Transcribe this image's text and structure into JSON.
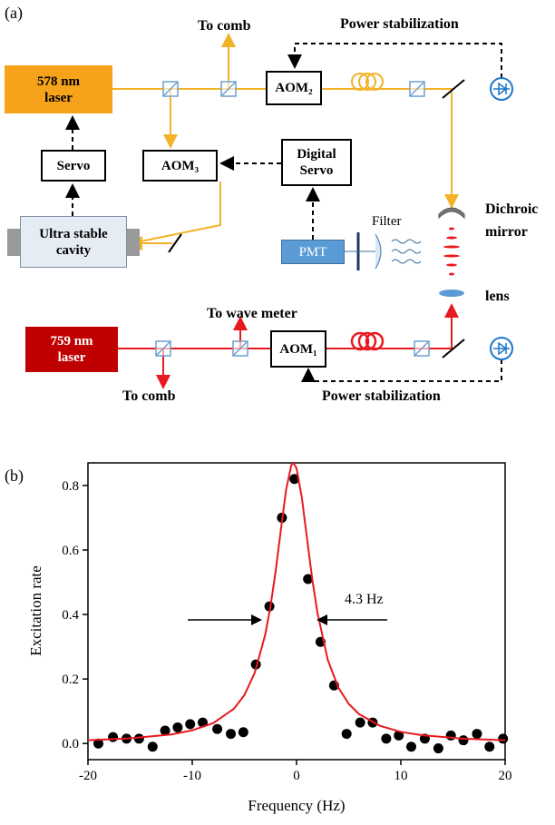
{
  "panel_labels": [
    "(a)",
    "(b)"
  ],
  "diagram": {
    "laser_578": "578 nm\nlaser",
    "to_comb_top": "To comb",
    "power_stab_top": "Power stabilization",
    "aom2": "AOM₂",
    "servo": "Servo",
    "aom3": "AOM₃",
    "digital_servo": "Digital\nServo",
    "cavity": "Ultra stable\ncavity",
    "pmt": "PMT",
    "filter": "Filter",
    "dichroic": "Dichroic\nmirror",
    "lens": "lens",
    "to_wave_meter": "To wave meter",
    "laser_759": "759 nm\nlaser",
    "aom1": "AOM₁",
    "to_comb_bottom": "To comb",
    "power_stab_bottom": "Power stabilization"
  },
  "chart_data": {
    "type": "scatter",
    "xlabel": "Frequency (Hz)",
    "ylabel": "Excitation rate",
    "annotation": "4.3 Hz",
    "xlim": [
      -20,
      20
    ],
    "xticks": [
      -20,
      -10,
      0,
      10,
      20
    ],
    "ylim": [
      -0.05,
      0.87
    ],
    "yticks": [
      {
        "value": 0,
        "label": "0.0"
      },
      0.2,
      0.4,
      0.6,
      0.8
    ],
    "series": [
      {
        "style": "markers",
        "color": "#000000",
        "x": [
          -19,
          -17.6,
          -16.3,
          -15.1,
          -13.8,
          -12.6,
          -11.4,
          -10.2,
          -9,
          -7.6,
          -6.3,
          -5.1,
          -3.9,
          -2.6,
          -1.4,
          -0.2,
          1.1,
          2.3,
          3.6,
          4.8,
          6.1,
          7.3,
          8.6,
          9.8,
          11,
          12.3,
          13.6,
          14.8,
          16,
          17.3,
          18.5,
          19.8
        ],
        "values": [
          0,
          0.02,
          0.015,
          0.015,
          -0.01,
          0.04,
          0.05,
          0.06,
          0.065,
          0.045,
          0.03,
          0.035,
          0.245,
          0.425,
          0.7,
          0.82,
          0.51,
          0.315,
          0.18,
          0.03,
          0.065,
          0.065,
          0.015,
          0.025,
          -0.01,
          0.015,
          -0.015,
          0.025,
          0.01,
          0.03,
          -0.01,
          0.015
        ]
      },
      {
        "style": "line",
        "color": "#e8191f",
        "x": [
          -20,
          -16,
          -12,
          -10,
          -8,
          -6,
          -5,
          -4,
          -3,
          -2.5,
          -2,
          -1.5,
          -1,
          -0.5,
          -0.3,
          0,
          0.5,
          1,
          1.5,
          2,
          3,
          4,
          5,
          6,
          8,
          10,
          12,
          16,
          20
        ],
        "values": [
          0.01,
          0.016,
          0.028,
          0.041,
          0.063,
          0.108,
          0.15,
          0.22,
          0.338,
          0.425,
          0.535,
          0.663,
          0.787,
          0.863,
          0.87,
          0.853,
          0.764,
          0.637,
          0.511,
          0.406,
          0.259,
          0.174,
          0.123,
          0.091,
          0.055,
          0.036,
          0.026,
          0.015,
          0.01
        ]
      }
    ]
  }
}
